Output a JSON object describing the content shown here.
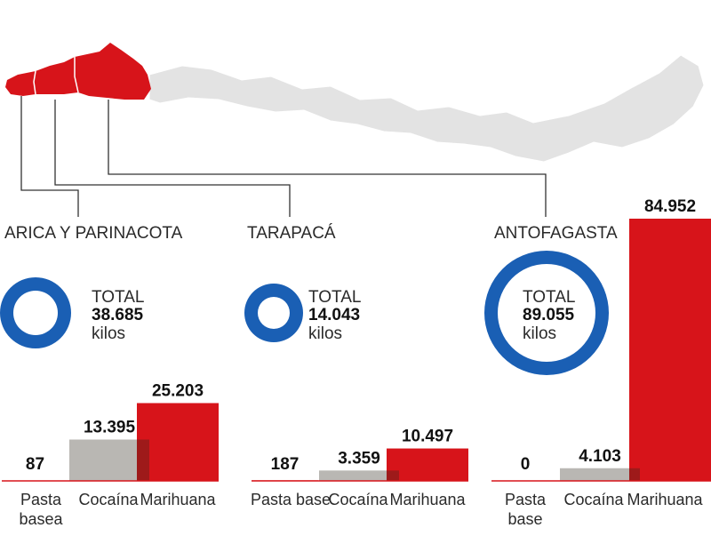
{
  "colors": {
    "highlight": "#d7141a",
    "map_gray": "#e3e3e3",
    "ring": "#1a5fb4",
    "bar_red": "#d7141a",
    "bar_gray": "#b9b7b3",
    "overlap": "#9e1a1a",
    "baseline": "#d7141a",
    "leader": "#333333"
  },
  "chart_data": [
    {
      "type": "bar",
      "title": "ARICA Y PARINACOTA",
      "total_label": "TOTAL",
      "total_value": "38.685",
      "total_unit": "kilos",
      "categories": [
        "Pasta basea",
        "Cocaína",
        "Marihuana"
      ],
      "category_lines": [
        [
          "Pasta",
          "basea"
        ],
        [
          "Cocaína"
        ],
        [
          "Marihuana"
        ]
      ],
      "values": [
        87,
        13395,
        25203
      ],
      "value_labels": [
        "87",
        "13.395",
        "25.203"
      ]
    },
    {
      "type": "bar",
      "title": "TARAPACÁ",
      "total_label": "TOTAL",
      "total_value": "14.043",
      "total_unit": "kilos",
      "categories": [
        "Pasta base",
        "Cocaína",
        "Marihuana"
      ],
      "category_lines": [
        [
          "Pasta base"
        ],
        [
          "Cocaína"
        ],
        [
          "Marihuana"
        ]
      ],
      "values": [
        187,
        3359,
        10497
      ],
      "value_labels": [
        "187",
        "3.359",
        "10.497"
      ]
    },
    {
      "type": "bar",
      "title": "ANTOFAGASTA",
      "total_label": "TOTAL",
      "total_value": "89.055",
      "total_unit": "kilos",
      "categories": [
        "Pasta base",
        "Cocaína",
        "Marihuana"
      ],
      "category_lines": [
        [
          "Pasta",
          "base"
        ],
        [
          "Cocaína"
        ],
        [
          "Marihuana"
        ]
      ],
      "values": [
        0,
        4103,
        84952
      ],
      "value_labels": [
        "0",
        "4.103",
        "84.952"
      ]
    }
  ]
}
